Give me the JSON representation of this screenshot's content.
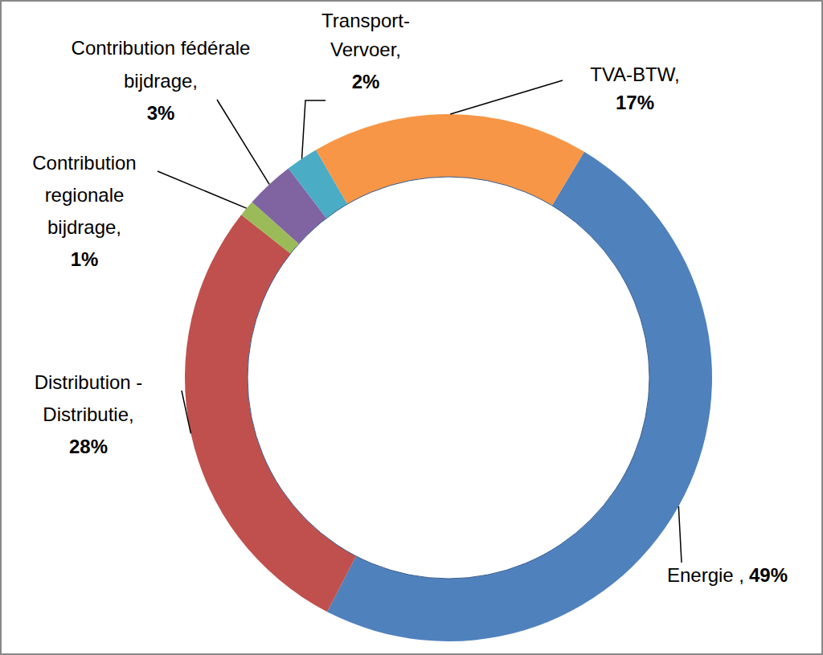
{
  "chart_data": {
    "type": "donut",
    "categories": [
      "Energie ,",
      "Distribution -\nDistributie,",
      "Contribution\nregionale\nbijdrage,",
      "Contribution fédérale\nbijdrage,",
      "Transport-\nVervoer,",
      "TVA-BTW,"
    ],
    "values": [
      49,
      28,
      1,
      3,
      2,
      17
    ],
    "value_labels": [
      "49%",
      "28%",
      "1%",
      "3%",
      "2%",
      "17%"
    ],
    "colors": [
      "#4f81bd",
      "#c0504d",
      "#9bbb59",
      "#8064a2",
      "#4bacc6",
      "#f79646"
    ],
    "data_labels": true
  }
}
